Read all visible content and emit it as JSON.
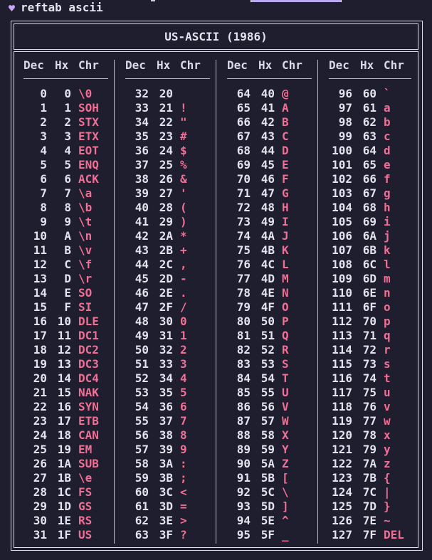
{
  "terminal": {
    "prompt_command": "reftab ascii",
    "prompt_icon": "heart-icon"
  },
  "table": {
    "title": "US-ASCII (1986)",
    "headers": {
      "dec": "Dec",
      "hex": "Hx",
      "chr": "Chr"
    },
    "columns": [
      [
        {
          "dec": "0",
          "hex": "0",
          "chr": "\\0"
        },
        {
          "dec": "1",
          "hex": "1",
          "chr": "SOH"
        },
        {
          "dec": "2",
          "hex": "2",
          "chr": "STX"
        },
        {
          "dec": "3",
          "hex": "3",
          "chr": "ETX"
        },
        {
          "dec": "4",
          "hex": "4",
          "chr": "EOT"
        },
        {
          "dec": "5",
          "hex": "5",
          "chr": "ENQ"
        },
        {
          "dec": "6",
          "hex": "6",
          "chr": "ACK"
        },
        {
          "dec": "7",
          "hex": "7",
          "chr": "\\a"
        },
        {
          "dec": "8",
          "hex": "8",
          "chr": "\\b"
        },
        {
          "dec": "9",
          "hex": "9",
          "chr": "\\t"
        },
        {
          "dec": "10",
          "hex": "A",
          "chr": "\\n"
        },
        {
          "dec": "11",
          "hex": "B",
          "chr": "\\v"
        },
        {
          "dec": "12",
          "hex": "C",
          "chr": "\\f"
        },
        {
          "dec": "13",
          "hex": "D",
          "chr": "\\r"
        },
        {
          "dec": "14",
          "hex": "E",
          "chr": "SO"
        },
        {
          "dec": "15",
          "hex": "F",
          "chr": "SI"
        },
        {
          "dec": "16",
          "hex": "10",
          "chr": "DLE"
        },
        {
          "dec": "17",
          "hex": "11",
          "chr": "DC1"
        },
        {
          "dec": "18",
          "hex": "12",
          "chr": "DC2"
        },
        {
          "dec": "19",
          "hex": "13",
          "chr": "DC3"
        },
        {
          "dec": "20",
          "hex": "14",
          "chr": "DC4"
        },
        {
          "dec": "21",
          "hex": "15",
          "chr": "NAK"
        },
        {
          "dec": "22",
          "hex": "16",
          "chr": "SYN"
        },
        {
          "dec": "23",
          "hex": "17",
          "chr": "ETB"
        },
        {
          "dec": "24",
          "hex": "18",
          "chr": "CAN"
        },
        {
          "dec": "25",
          "hex": "19",
          "chr": "EM"
        },
        {
          "dec": "26",
          "hex": "1A",
          "chr": "SUB"
        },
        {
          "dec": "27",
          "hex": "1B",
          "chr": "\\e"
        },
        {
          "dec": "28",
          "hex": "1C",
          "chr": "FS"
        },
        {
          "dec": "29",
          "hex": "1D",
          "chr": "GS"
        },
        {
          "dec": "30",
          "hex": "1E",
          "chr": "RS"
        },
        {
          "dec": "31",
          "hex": "1F",
          "chr": "US"
        }
      ],
      [
        {
          "dec": "32",
          "hex": "20",
          "chr": ""
        },
        {
          "dec": "33",
          "hex": "21",
          "chr": "!"
        },
        {
          "dec": "34",
          "hex": "22",
          "chr": "\""
        },
        {
          "dec": "35",
          "hex": "23",
          "chr": "#"
        },
        {
          "dec": "36",
          "hex": "24",
          "chr": "$"
        },
        {
          "dec": "37",
          "hex": "25",
          "chr": "%"
        },
        {
          "dec": "38",
          "hex": "26",
          "chr": "&"
        },
        {
          "dec": "39",
          "hex": "27",
          "chr": "'"
        },
        {
          "dec": "40",
          "hex": "28",
          "chr": "("
        },
        {
          "dec": "41",
          "hex": "29",
          "chr": ")"
        },
        {
          "dec": "42",
          "hex": "2A",
          "chr": "*"
        },
        {
          "dec": "43",
          "hex": "2B",
          "chr": "+"
        },
        {
          "dec": "44",
          "hex": "2C",
          "chr": ","
        },
        {
          "dec": "45",
          "hex": "2D",
          "chr": "-"
        },
        {
          "dec": "46",
          "hex": "2E",
          "chr": "."
        },
        {
          "dec": "47",
          "hex": "2F",
          "chr": "/"
        },
        {
          "dec": "48",
          "hex": "30",
          "chr": "0"
        },
        {
          "dec": "49",
          "hex": "31",
          "chr": "1"
        },
        {
          "dec": "50",
          "hex": "32",
          "chr": "2"
        },
        {
          "dec": "51",
          "hex": "33",
          "chr": "3"
        },
        {
          "dec": "52",
          "hex": "34",
          "chr": "4"
        },
        {
          "dec": "53",
          "hex": "35",
          "chr": "5"
        },
        {
          "dec": "54",
          "hex": "36",
          "chr": "6"
        },
        {
          "dec": "55",
          "hex": "37",
          "chr": "7"
        },
        {
          "dec": "56",
          "hex": "38",
          "chr": "8"
        },
        {
          "dec": "57",
          "hex": "39",
          "chr": "9"
        },
        {
          "dec": "58",
          "hex": "3A",
          "chr": ":"
        },
        {
          "dec": "59",
          "hex": "3B",
          "chr": ";"
        },
        {
          "dec": "60",
          "hex": "3C",
          "chr": "<"
        },
        {
          "dec": "61",
          "hex": "3D",
          "chr": "="
        },
        {
          "dec": "62",
          "hex": "3E",
          "chr": ">"
        },
        {
          "dec": "63",
          "hex": "3F",
          "chr": "?"
        }
      ],
      [
        {
          "dec": "64",
          "hex": "40",
          "chr": "@"
        },
        {
          "dec": "65",
          "hex": "41",
          "chr": "A"
        },
        {
          "dec": "66",
          "hex": "42",
          "chr": "B"
        },
        {
          "dec": "67",
          "hex": "43",
          "chr": "C"
        },
        {
          "dec": "68",
          "hex": "44",
          "chr": "D"
        },
        {
          "dec": "69",
          "hex": "45",
          "chr": "E"
        },
        {
          "dec": "70",
          "hex": "46",
          "chr": "F"
        },
        {
          "dec": "71",
          "hex": "47",
          "chr": "G"
        },
        {
          "dec": "72",
          "hex": "48",
          "chr": "H"
        },
        {
          "dec": "73",
          "hex": "49",
          "chr": "I"
        },
        {
          "dec": "74",
          "hex": "4A",
          "chr": "J"
        },
        {
          "dec": "75",
          "hex": "4B",
          "chr": "K"
        },
        {
          "dec": "76",
          "hex": "4C",
          "chr": "L"
        },
        {
          "dec": "77",
          "hex": "4D",
          "chr": "M"
        },
        {
          "dec": "78",
          "hex": "4E",
          "chr": "N"
        },
        {
          "dec": "79",
          "hex": "4F",
          "chr": "O"
        },
        {
          "dec": "80",
          "hex": "50",
          "chr": "P"
        },
        {
          "dec": "81",
          "hex": "51",
          "chr": "Q"
        },
        {
          "dec": "82",
          "hex": "52",
          "chr": "R"
        },
        {
          "dec": "83",
          "hex": "53",
          "chr": "S"
        },
        {
          "dec": "84",
          "hex": "54",
          "chr": "T"
        },
        {
          "dec": "85",
          "hex": "55",
          "chr": "U"
        },
        {
          "dec": "86",
          "hex": "56",
          "chr": "V"
        },
        {
          "dec": "87",
          "hex": "57",
          "chr": "W"
        },
        {
          "dec": "88",
          "hex": "58",
          "chr": "X"
        },
        {
          "dec": "89",
          "hex": "59",
          "chr": "Y"
        },
        {
          "dec": "90",
          "hex": "5A",
          "chr": "Z"
        },
        {
          "dec": "91",
          "hex": "5B",
          "chr": "["
        },
        {
          "dec": "92",
          "hex": "5C",
          "chr": "\\"
        },
        {
          "dec": "93",
          "hex": "5D",
          "chr": "]"
        },
        {
          "dec": "94",
          "hex": "5E",
          "chr": "^"
        },
        {
          "dec": "95",
          "hex": "5F",
          "chr": "_"
        }
      ],
      [
        {
          "dec": "96",
          "hex": "60",
          "chr": "`"
        },
        {
          "dec": "97",
          "hex": "61",
          "chr": "a"
        },
        {
          "dec": "98",
          "hex": "62",
          "chr": "b"
        },
        {
          "dec": "99",
          "hex": "63",
          "chr": "c"
        },
        {
          "dec": "100",
          "hex": "64",
          "chr": "d"
        },
        {
          "dec": "101",
          "hex": "65",
          "chr": "e"
        },
        {
          "dec": "102",
          "hex": "66",
          "chr": "f"
        },
        {
          "dec": "103",
          "hex": "67",
          "chr": "g"
        },
        {
          "dec": "104",
          "hex": "68",
          "chr": "h"
        },
        {
          "dec": "105",
          "hex": "69",
          "chr": "i"
        },
        {
          "dec": "106",
          "hex": "6A",
          "chr": "j"
        },
        {
          "dec": "107",
          "hex": "6B",
          "chr": "k"
        },
        {
          "dec": "108",
          "hex": "6C",
          "chr": "l"
        },
        {
          "dec": "109",
          "hex": "6D",
          "chr": "m"
        },
        {
          "dec": "110",
          "hex": "6E",
          "chr": "n"
        },
        {
          "dec": "111",
          "hex": "6F",
          "chr": "o"
        },
        {
          "dec": "112",
          "hex": "70",
          "chr": "p"
        },
        {
          "dec": "113",
          "hex": "71",
          "chr": "q"
        },
        {
          "dec": "114",
          "hex": "72",
          "chr": "r"
        },
        {
          "dec": "115",
          "hex": "73",
          "chr": "s"
        },
        {
          "dec": "116",
          "hex": "74",
          "chr": "t"
        },
        {
          "dec": "117",
          "hex": "75",
          "chr": "u"
        },
        {
          "dec": "118",
          "hex": "76",
          "chr": "v"
        },
        {
          "dec": "119",
          "hex": "77",
          "chr": "w"
        },
        {
          "dec": "120",
          "hex": "78",
          "chr": "x"
        },
        {
          "dec": "121",
          "hex": "79",
          "chr": "y"
        },
        {
          "dec": "122",
          "hex": "7A",
          "chr": "z"
        },
        {
          "dec": "123",
          "hex": "7B",
          "chr": "{"
        },
        {
          "dec": "124",
          "hex": "7C",
          "chr": "|"
        },
        {
          "dec": "125",
          "hex": "7D",
          "chr": "}"
        },
        {
          "dec": "126",
          "hex": "7E",
          "chr": "~"
        },
        {
          "dec": "127",
          "hex": "7F",
          "chr": "DEL"
        }
      ]
    ]
  },
  "colors": {
    "background": "#1e1e2e",
    "text": "#e3e3ef",
    "char_accent": "#f06f95",
    "prompt_icon": "#cba6f7",
    "selection": "#b9a9f2"
  }
}
